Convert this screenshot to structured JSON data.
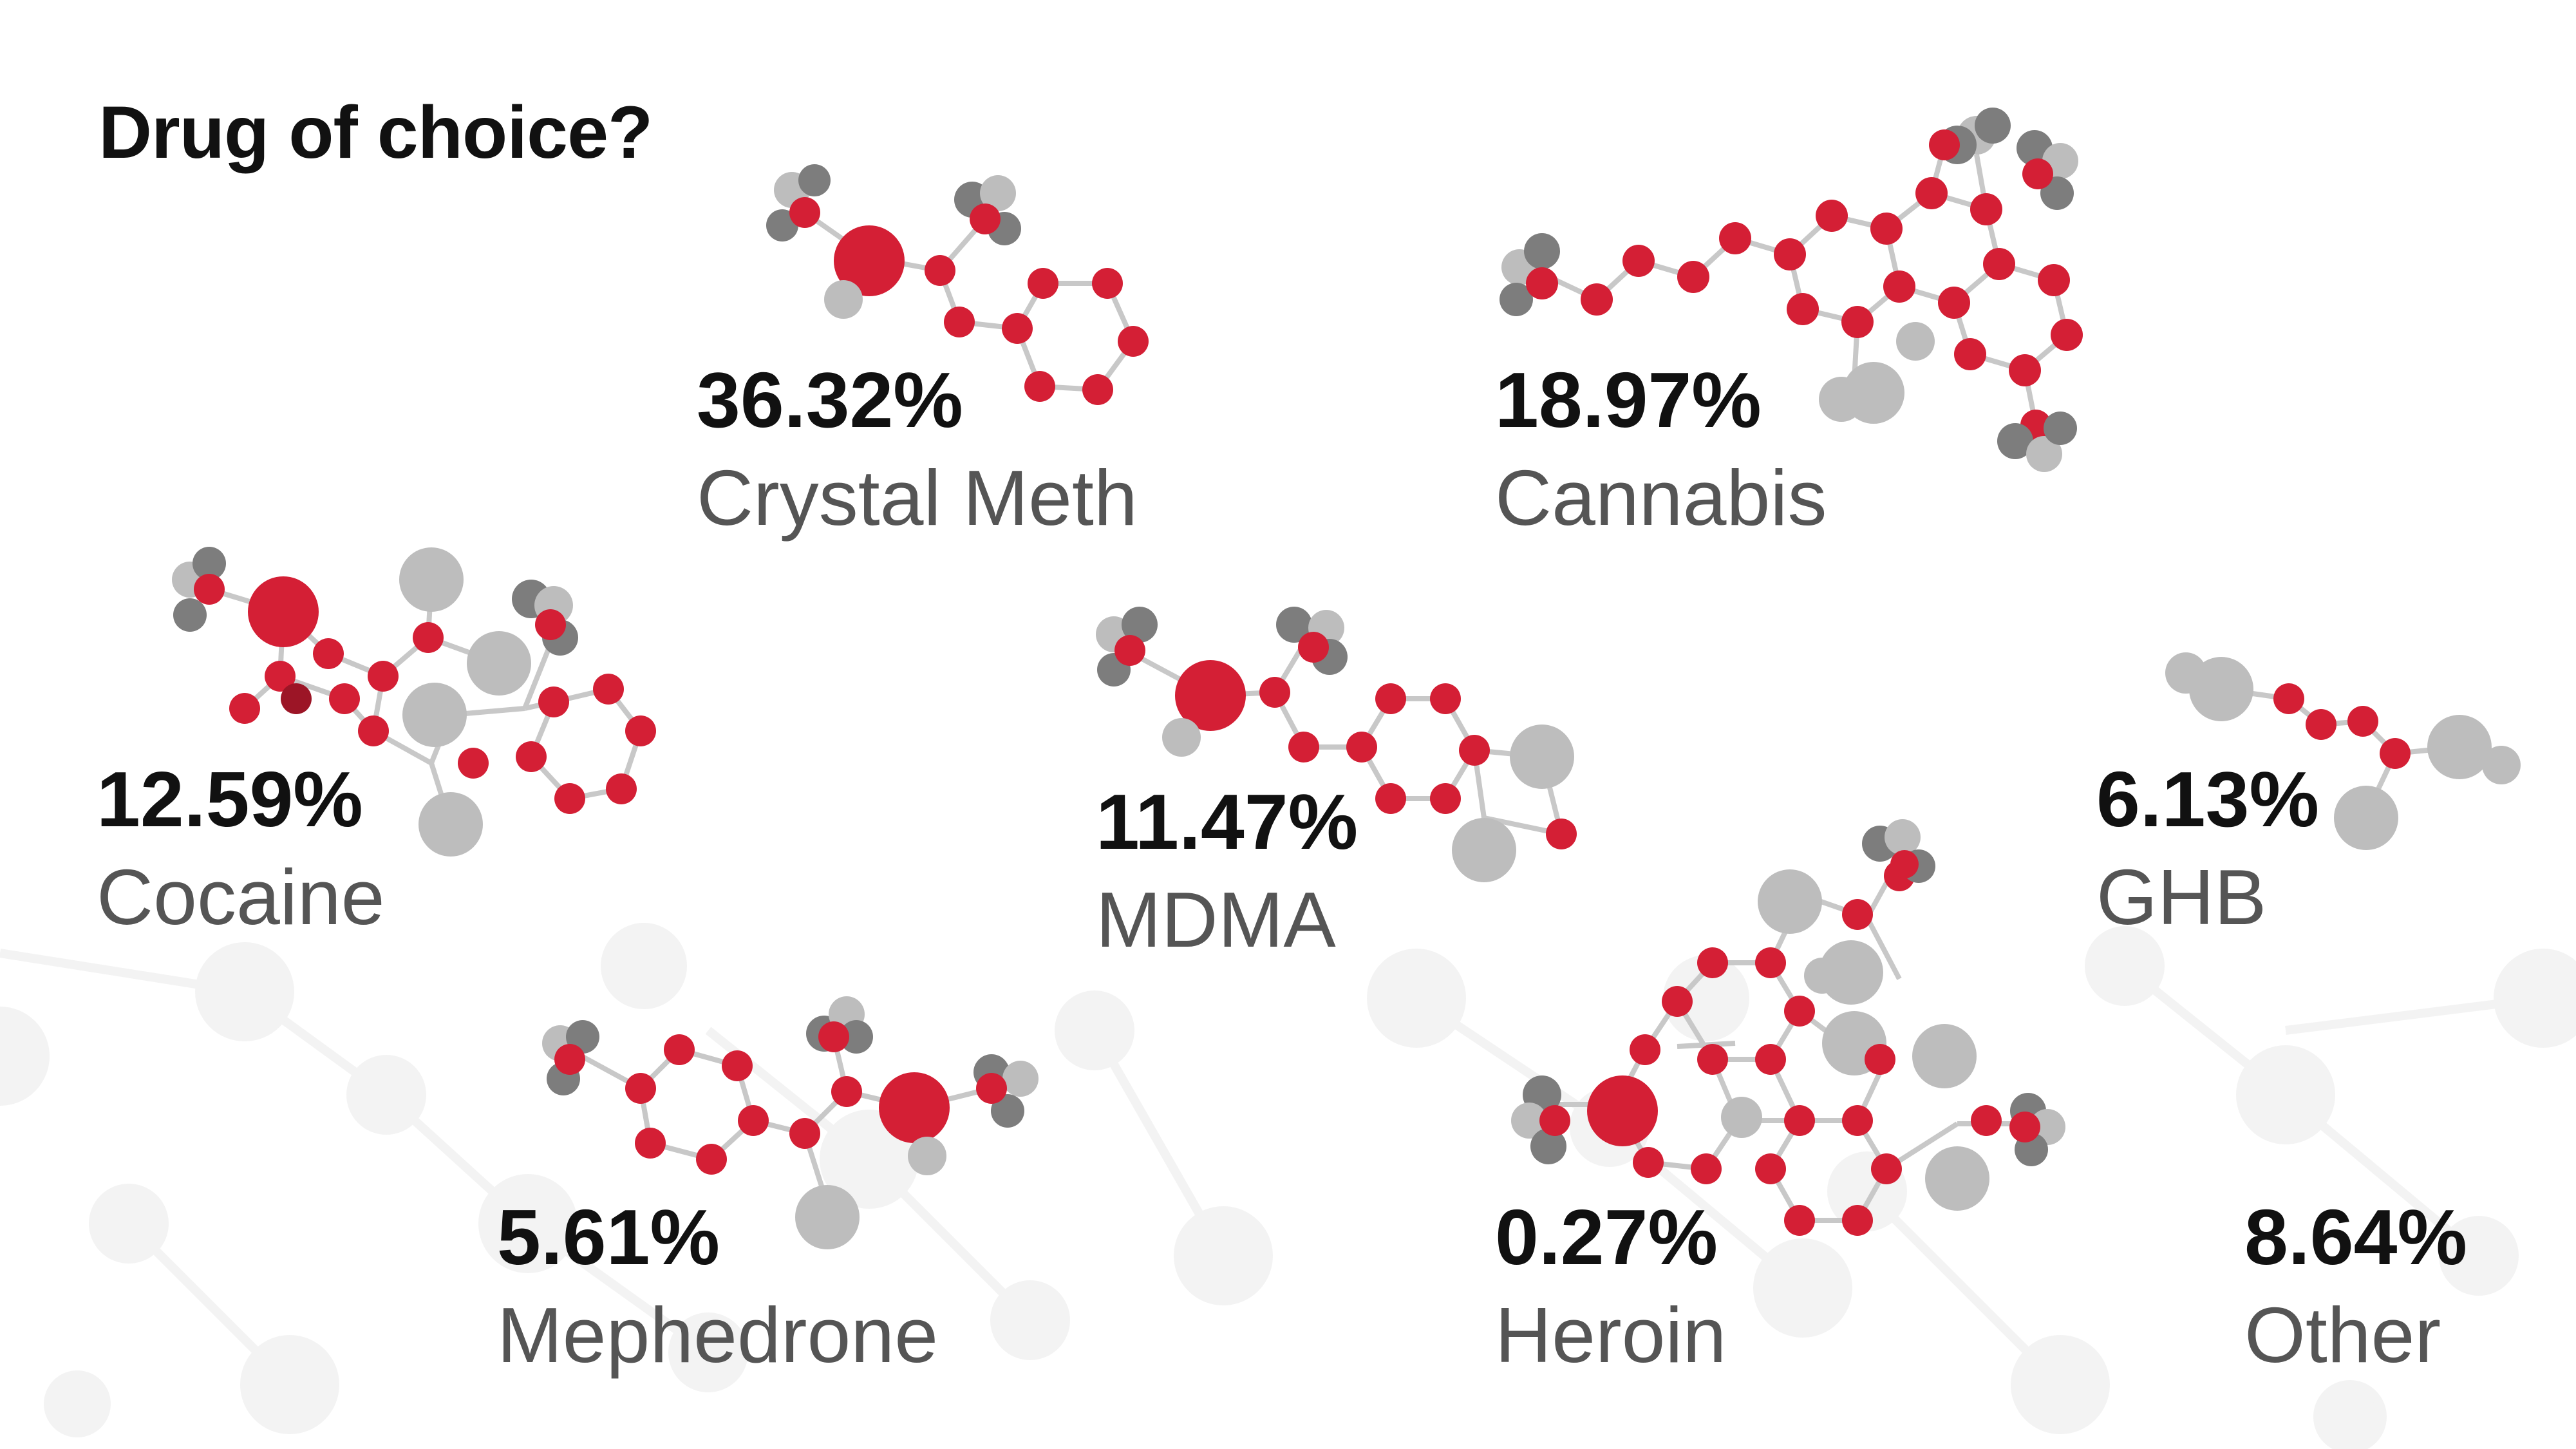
{
  "title": "Drug of choice?",
  "colors": {
    "atom_red": "#d41f35",
    "atom_light": "#bdbdbd",
    "atom_dark": "#7d7d7d",
    "bond": "#c8c8c8",
    "watermark": "#f2f2f2"
  },
  "chart_data": {
    "type": "pictograph",
    "title": "Drug of choice?",
    "unit": "%",
    "items": [
      {
        "label": "Crystal Meth",
        "value": 36.32,
        "value_label": "36.32%"
      },
      {
        "label": "Cannabis",
        "value": 18.97,
        "value_label": "18.97%"
      },
      {
        "label": "Cocaine",
        "value": 12.59,
        "value_label": "12.59%"
      },
      {
        "label": "MDMA",
        "value": 11.47,
        "value_label": "11.47%"
      },
      {
        "label": "GHB",
        "value": 6.13,
        "value_label": "6.13%"
      },
      {
        "label": "Mephedrone",
        "value": 5.61,
        "value_label": "5.61%"
      },
      {
        "label": "Heroin",
        "value": 0.27,
        "value_label": "0.27%"
      },
      {
        "label": "Other",
        "value": 8.64,
        "value_label": "8.64%"
      }
    ]
  }
}
